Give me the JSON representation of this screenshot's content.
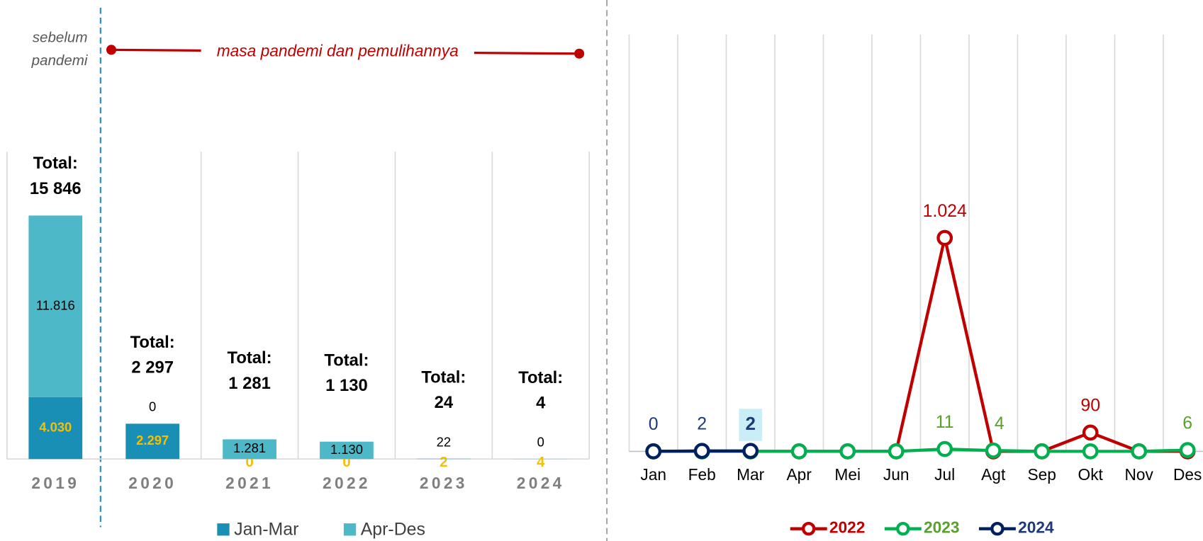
{
  "chart_data": [
    {
      "type": "bar",
      "categories": [
        "2019",
        "2020",
        "2021",
        "2022",
        "2023",
        "2024"
      ],
      "series": [
        {
          "name": "Jan-Mar",
          "color": "#1a8fb5",
          "values": [
            4030,
            2297,
            0,
            0,
            2,
            4
          ],
          "value_labels": [
            "4.030",
            "2.297",
            "0",
            "0",
            "2",
            "4"
          ]
        },
        {
          "name": "Apr-Des",
          "color": "#4db8c8",
          "values": [
            11816,
            0,
            1281,
            1130,
            22,
            0
          ],
          "value_labels": [
            "11.816",
            "0",
            "1.281",
            "1.130",
            "22",
            "0"
          ]
        }
      ],
      "totals": [
        15846,
        2297,
        1281,
        1130,
        24,
        4
      ],
      "total_labels": [
        "15 846",
        "2 297",
        "1 281",
        "1 130",
        "24",
        "4"
      ],
      "total_prefix": "Total:",
      "annotations": {
        "before": [
          "sebelum",
          "pandemi"
        ],
        "after": "masa pandemi dan pemulihannya"
      },
      "ylim": [
        0,
        20000
      ]
    },
    {
      "type": "line",
      "categories": [
        "Jan",
        "Feb",
        "Mar",
        "Apr",
        "Mei",
        "Jun",
        "Jul",
        "Agt",
        "Sep",
        "Okt",
        "Nov",
        "Des"
      ],
      "series": [
        {
          "name": "2022",
          "color": "#c00000",
          "label_color": "#c00000",
          "values": [
            0,
            0,
            0,
            0,
            0,
            0,
            1024,
            0,
            0,
            90,
            0,
            0
          ],
          "value_labels": [
            null,
            null,
            null,
            null,
            null,
            null,
            "1.024",
            null,
            null,
            "90",
            null,
            null
          ]
        },
        {
          "name": "2023",
          "color": "#00b050",
          "label_color": "#5aa02c",
          "values": [
            0,
            0,
            0,
            0,
            0,
            0,
            11,
            4,
            0,
            0,
            0,
            6
          ],
          "value_labels": [
            null,
            null,
            null,
            null,
            null,
            null,
            "11",
            "4",
            null,
            null,
            null,
            "6"
          ]
        },
        {
          "name": "2024",
          "color": "#002060",
          "label_color": "#1f3a7a",
          "values": [
            0,
            2,
            2,
            null,
            null,
            null,
            null,
            null,
            null,
            null,
            null,
            null
          ],
          "value_labels": [
            "0",
            "2",
            "2",
            null,
            null,
            null,
            null,
            null,
            null,
            null,
            null,
            null
          ]
        }
      ],
      "ylim": [
        0,
        2000
      ],
      "grid": true
    }
  ]
}
